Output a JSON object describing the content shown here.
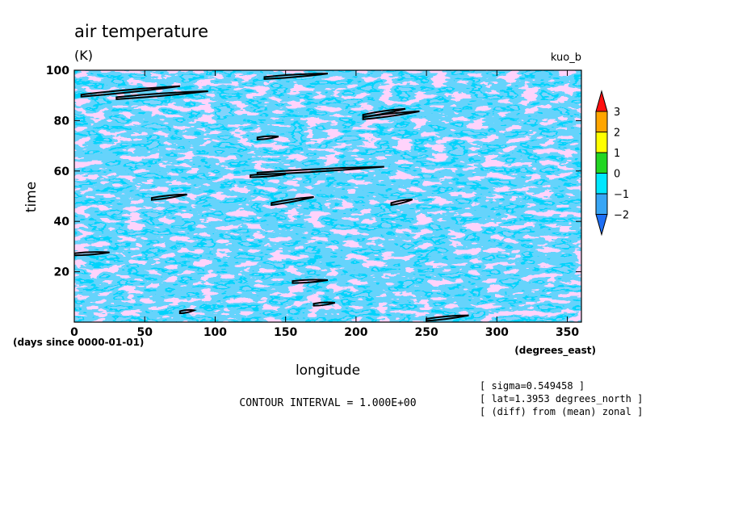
{
  "chart_data": {
    "type": "heatmap",
    "title": "air temperature",
    "units": "(K)",
    "dataset": "kuo_b",
    "xlabel": "longitude",
    "ylabel": "time",
    "x_unit_label": "(degrees_east)",
    "y_unit_label": "(days since 0000-01-01)",
    "xlim": [
      0,
      360
    ],
    "ylim": [
      0,
      100
    ],
    "x_ticks": [
      0,
      50,
      100,
      150,
      200,
      250,
      300,
      350
    ],
    "y_ticks": [
      20,
      40,
      60,
      80,
      100
    ],
    "contour_interval_text": "CONTOUR INTERVAL = 1.000E+00",
    "annotations": [
      "[ sigma=0.549458 ]",
      "[ lat=1.3953 degrees_north ]",
      "[ (diff) from (mean) zonal ]"
    ],
    "colorbar": {
      "labels": [
        "3",
        "2",
        "1",
        "0",
        "−1",
        "−2"
      ],
      "levels": [
        -3,
        -2,
        -1,
        0,
        1,
        2,
        3
      ],
      "colors": [
        "#1e6ff5",
        "#38a6f5",
        "#00e7ff",
        "#22d622",
        "#ffff00",
        "#ffa500",
        "#ff1010"
      ]
    },
    "contour_segments": [
      {
        "level": 2,
        "x": [
          5,
          75
        ],
        "y": [
          90,
          94
        ]
      },
      {
        "level": 2,
        "x": [
          30,
          95
        ],
        "y": [
          89,
          92
        ]
      },
      {
        "level": 2,
        "x": [
          135,
          180
        ],
        "y": [
          97,
          99
        ]
      },
      {
        "level": 2,
        "x": [
          205,
          245
        ],
        "y": [
          81,
          84
        ]
      },
      {
        "level": 2,
        "x": [
          205,
          235
        ],
        "y": [
          82,
          85
        ]
      },
      {
        "level": 2,
        "x": [
          130,
          220
        ],
        "y": [
          59,
          62
        ]
      },
      {
        "level": 2,
        "x": [
          125,
          150
        ],
        "y": [
          58,
          59
        ]
      },
      {
        "level": 2,
        "x": [
          140,
          170
        ],
        "y": [
          47,
          50
        ]
      },
      {
        "level": 2,
        "x": [
          55,
          80
        ],
        "y": [
          49,
          51
        ]
      },
      {
        "level": 2,
        "x": [
          225,
          240
        ],
        "y": [
          47,
          49
        ]
      },
      {
        "level": 2,
        "x": [
          0,
          25
        ],
        "y": [
          27,
          28
        ]
      },
      {
        "level": 2,
        "x": [
          155,
          180
        ],
        "y": [
          16,
          17
        ]
      },
      {
        "level": 2,
        "x": [
          170,
          185
        ],
        "y": [
          7,
          8
        ]
      },
      {
        "level": 2,
        "x": [
          75,
          85
        ],
        "y": [
          4,
          5
        ]
      },
      {
        "level": 2,
        "x": [
          250,
          280
        ],
        "y": [
          1,
          3
        ]
      },
      {
        "level": 2,
        "x": [
          130,
          145
        ],
        "y": [
          73,
          74
        ]
      }
    ]
  }
}
